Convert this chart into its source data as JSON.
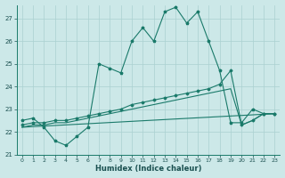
{
  "xlabel": "Humidex (Indice chaleur)",
  "bg_color": "#cce8e8",
  "grid_color": "#aad0d0",
  "line_color": "#1a7a6a",
  "xlim": [
    -0.5,
    23.5
  ],
  "ylim": [
    21.0,
    27.6
  ],
  "yticks": [
    21,
    22,
    23,
    24,
    25,
    26,
    27
  ],
  "xticks": [
    0,
    1,
    2,
    3,
    4,
    5,
    6,
    7,
    8,
    9,
    10,
    11,
    12,
    13,
    14,
    15,
    16,
    17,
    18,
    19,
    20,
    21,
    22,
    23
  ],
  "line_main": {
    "x": [
      0,
      1,
      2,
      3,
      4,
      5,
      6,
      7,
      8,
      9,
      10,
      11,
      12,
      13,
      14,
      15,
      16,
      17,
      18,
      19,
      20,
      21,
      22,
      23
    ],
    "y": [
      22.5,
      22.6,
      22.2,
      21.6,
      21.4,
      21.8,
      22.2,
      25.0,
      24.8,
      24.6,
      26.0,
      26.6,
      26.0,
      27.3,
      27.5,
      26.8,
      27.3,
      26.0,
      24.7,
      22.4,
      22.4,
      23.0,
      22.8,
      22.8
    ]
  },
  "line_trend1": {
    "x": [
      0,
      1,
      2,
      3,
      4,
      5,
      6,
      7,
      8,
      9,
      10,
      11,
      12,
      13,
      14,
      15,
      16,
      17,
      18,
      19,
      20,
      21,
      22,
      23
    ],
    "y": [
      22.3,
      22.4,
      22.4,
      22.5,
      22.5,
      22.6,
      22.7,
      22.8,
      22.9,
      23.0,
      23.2,
      23.3,
      23.4,
      23.5,
      23.6,
      23.7,
      23.8,
      23.9,
      24.1,
      24.7,
      22.3,
      22.5,
      22.8,
      22.8
    ]
  },
  "line_trend2": {
    "x": [
      0,
      1,
      2,
      3,
      4,
      5,
      6,
      7,
      8,
      9,
      10,
      11,
      12,
      13,
      14,
      15,
      16,
      17,
      18,
      19,
      20,
      21,
      22,
      23
    ],
    "y": [
      22.2,
      22.3,
      22.3,
      22.4,
      22.4,
      22.5,
      22.6,
      22.7,
      22.8,
      22.9,
      23.0,
      23.1,
      23.2,
      23.3,
      23.4,
      23.5,
      23.6,
      23.7,
      23.8,
      23.9,
      22.3,
      22.5,
      22.8,
      22.8
    ]
  },
  "line_base": {
    "x": [
      0,
      23
    ],
    "y": [
      22.2,
      22.8
    ]
  }
}
